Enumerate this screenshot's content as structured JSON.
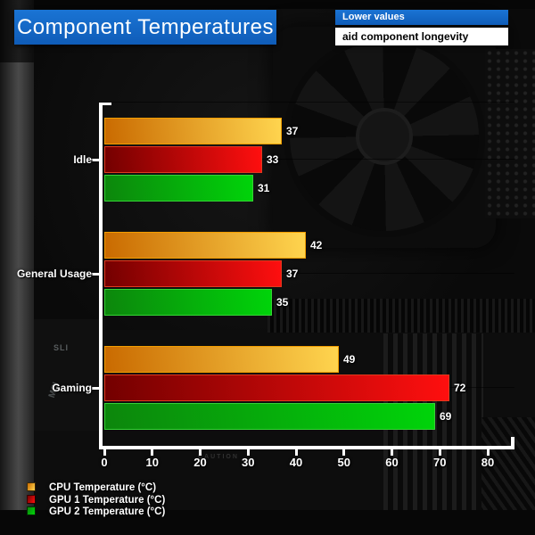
{
  "title": "Component Temperatures",
  "callout": {
    "line1": "Lower values",
    "line2": "aid component longevity"
  },
  "colors": {
    "header_blue": "#1467c8",
    "axis_white": "#ffffff"
  },
  "chart_data": {
    "type": "bar",
    "orientation": "horizontal",
    "title": "Component Temperatures",
    "categories": [
      "Idle",
      "General Usage",
      "Gaming"
    ],
    "series": [
      {
        "name": "CPU Temperature (°C)",
        "values": [
          37,
          42,
          49
        ],
        "color_start": "#c96a00",
        "color_end": "#ffd54f",
        "border": "#f29d00"
      },
      {
        "name": "GPU 1 Temperature (°C)",
        "values": [
          33,
          37,
          72
        ],
        "color_start": "#730000",
        "color_end": "#ff0f0f",
        "border": "#e23a1e"
      },
      {
        "name": "GPU 2 Temperature (°C)",
        "values": [
          31,
          35,
          69
        ],
        "color_start": "#0c860c",
        "color_end": "#00d40a",
        "border": "#35d435"
      }
    ],
    "xlim": [
      0,
      80
    ],
    "xticks": [
      0,
      10,
      20,
      30,
      40,
      50,
      60,
      70,
      80
    ],
    "grid": false,
    "value_labels": true,
    "legend_position": "bottom-left"
  },
  "photo_labels": {
    "sli": "SLI",
    "msi": "MSI",
    "caution": "CAUTION"
  }
}
